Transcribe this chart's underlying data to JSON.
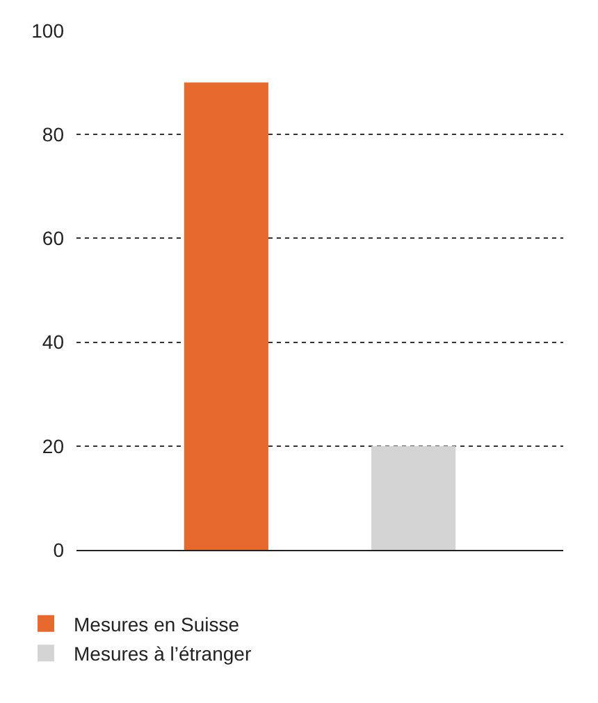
{
  "chart_data": {
    "type": "bar",
    "categories": [
      null,
      null
    ],
    "series": [
      {
        "name": "Mesures en Suisse",
        "color": "#e8692e",
        "values": [
          90,
          null
        ]
      },
      {
        "name": "Mesures à l’étranger",
        "color": "#d4d4d4",
        "values": [
          null,
          20
        ]
      }
    ],
    "ylim": [
      0,
      100
    ],
    "yticks": [
      0,
      20,
      40,
      60,
      80,
      100
    ],
    "grid": "y",
    "legend": "bottom"
  }
}
